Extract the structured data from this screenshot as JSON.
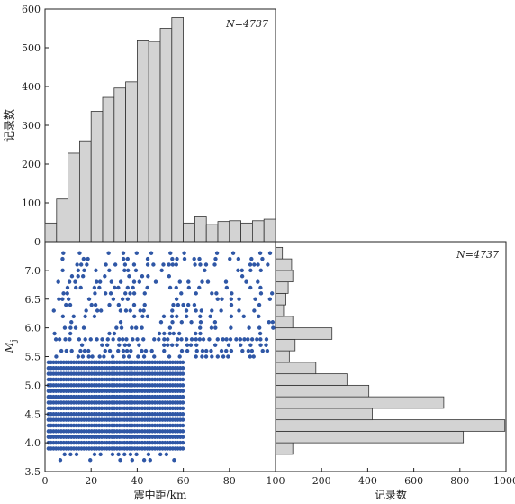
{
  "chart_data": [
    {
      "id": "top-histogram",
      "type": "bar",
      "annotation": "N=4737",
      "ylabel": "记录数",
      "xlim": [
        0,
        100
      ],
      "ylim": [
        0,
        600
      ],
      "yticks": [
        0,
        100,
        200,
        300,
        400,
        500,
        600
      ],
      "bin_width": 5,
      "bin_starts": [
        0,
        5,
        10,
        15,
        20,
        25,
        30,
        35,
        40,
        45,
        50,
        55,
        60,
        65,
        70,
        75,
        80,
        85,
        90,
        95
      ],
      "values": [
        48,
        110,
        228,
        260,
        336,
        372,
        396,
        412,
        520,
        516,
        550,
        578,
        48,
        64,
        44,
        52,
        54,
        48,
        54,
        58
      ],
      "bar_color": "#d3d3d3"
    },
    {
      "id": "scatter",
      "type": "scatter",
      "xlabel": "震中距/km",
      "ylabel": "M",
      "ylabel_subscript": "j",
      "xlim": [
        0,
        100
      ],
      "ylim": [
        3.5,
        7.5
      ],
      "xticks": [
        0,
        20,
        40,
        60,
        80,
        100
      ],
      "yticks": [
        3.5,
        4.0,
        4.5,
        5.0,
        5.5,
        6.0,
        6.5,
        7.0
      ],
      "point_color": "#2f57a6",
      "magnitude_levels": [
        3.7,
        3.8,
        3.9,
        4.0,
        4.1,
        4.2,
        4.3,
        4.4,
        4.5,
        4.6,
        4.7,
        4.8,
        4.9,
        5.0,
        5.1,
        5.2,
        5.3,
        5.4,
        5.5,
        5.6,
        5.7,
        5.8,
        5.9,
        6.0,
        6.1,
        6.2,
        6.3,
        6.4,
        6.5,
        6.6,
        6.7,
        6.8,
        6.9,
        7.0,
        7.1,
        7.2,
        7.3
      ],
      "note": "Points lie on 0.1-magnitude levels; dense for distances 0-60 km at Mj 3.9-5.4, sparse above 5.4 up to 100 km."
    },
    {
      "id": "right-histogram",
      "type": "bar",
      "orientation": "horizontal",
      "annotation": "N=4737",
      "xlabel": "记录数",
      "xlim": [
        0,
        1000
      ],
      "xticks": [
        0,
        200,
        400,
        600,
        800,
        1000
      ],
      "bin_width": 0.2,
      "bin_starts": [
        3.8,
        4.0,
        4.2,
        4.4,
        4.6,
        4.8,
        5.0,
        5.2,
        5.4,
        5.6,
        5.8,
        6.0,
        6.2,
        6.4,
        6.6,
        6.8,
        7.0,
        7.2
      ],
      "values": [
        75,
        815,
        995,
        420,
        730,
        405,
        310,
        175,
        60,
        85,
        245,
        75,
        35,
        45,
        55,
        75,
        70,
        30
      ],
      "bar_color": "#d3d3d3"
    }
  ]
}
